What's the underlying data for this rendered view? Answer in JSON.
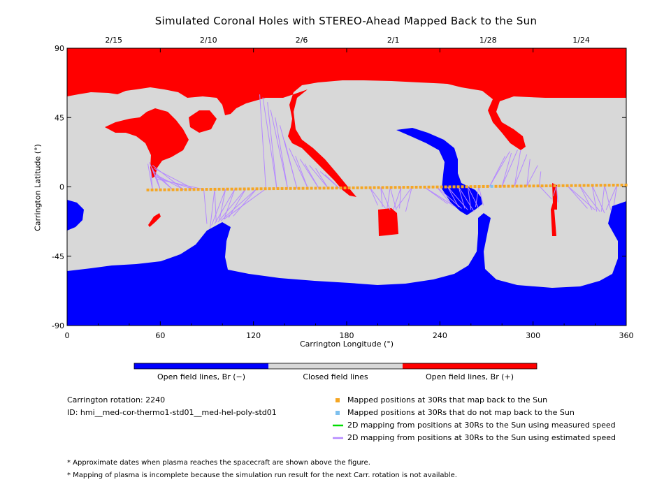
{
  "chart_data": {
    "type": "heatmap",
    "title": "Simulated Coronal Holes with STEREO-Ahead Mapped Back to the Sun",
    "xlabel": "Carrington Longitude (°)",
    "ylabel": "Carrington Latitude (°)",
    "xlim": [
      0,
      360
    ],
    "ylim": [
      -90,
      90
    ],
    "xticks": [
      0,
      60,
      120,
      180,
      240,
      300,
      360
    ],
    "yticks": [
      -90,
      -45,
      0,
      45,
      90
    ],
    "top_axis_dates": [
      {
        "label": "2/15",
        "lon": 30
      },
      {
        "label": "2/10",
        "lon": 91
      },
      {
        "label": "2/6",
        "lon": 151
      },
      {
        "label": "2/1",
        "lon": 210
      },
      {
        "label": "1/28",
        "lon": 271
      },
      {
        "label": "1/24",
        "lon": 331
      }
    ],
    "colors": {
      "open_negative": "#0000ff",
      "closed": "#d8d8d8",
      "open_positive": "#ff0000",
      "mapped_point": "#f5a623",
      "unmapped_point": "#7ec0ee",
      "measured_line": "#00dd00",
      "estimated_line": "#b589ff"
    },
    "colorbar": [
      {
        "label": "Open field lines, Br (−)",
        "color": "#0000ff"
      },
      {
        "label": "Closed field lines",
        "color": "#d8d8d8"
      },
      {
        "label": "Open field lines, Br (+)",
        "color": "#ff0000"
      }
    ],
    "mapped_positions_at_30Rs": {
      "lon_start": 52,
      "lon_end": 360,
      "lat_start": -2.0,
      "lat_end": 1.2,
      "unmapped_lon": [
        274
      ]
    },
    "mapping_lines_estimated_speed": [
      {
        "from_lon": 55,
        "to": [
          [
            52,
            15
          ],
          [
            54,
            10
          ]
        ]
      },
      {
        "from_lon": 60,
        "to": [
          [
            55,
            12
          ],
          [
            57,
            8
          ],
          [
            53,
            16
          ]
        ]
      },
      {
        "from_lon": 68,
        "to": [
          [
            56,
            10
          ],
          [
            58,
            7
          ]
        ]
      },
      {
        "from_lon": 75,
        "to": [
          [
            57,
            8
          ],
          [
            55,
            14
          ]
        ]
      },
      {
        "from_lon": 82,
        "to": [
          [
            58,
            6
          ],
          [
            56,
            12
          ]
        ]
      },
      {
        "from_lon": 88,
        "to": [
          [
            90,
            -24
          ],
          [
            58,
            5
          ]
        ]
      },
      {
        "from_lon": 95,
        "to": [
          [
            92,
            -27
          ],
          [
            96,
            -23
          ]
        ]
      },
      {
        "from_lon": 102,
        "to": [
          [
            93,
            -25
          ],
          [
            98,
            -22
          ]
        ]
      },
      {
        "from_lon": 108,
        "to": [
          [
            95,
            -24
          ],
          [
            101,
            -21
          ]
        ]
      },
      {
        "from_lon": 115,
        "to": [
          [
            97,
            -23
          ],
          [
            104,
            -20
          ]
        ]
      },
      {
        "from_lon": 122,
        "to": [
          [
            99,
            -22
          ],
          [
            107,
            -19
          ]
        ]
      },
      {
        "from_lon": 128,
        "to": [
          [
            101,
            -21
          ],
          [
            124,
            60
          ]
        ]
      },
      {
        "from_lon": 135,
        "to": [
          [
            126,
            58
          ],
          [
            129,
            55
          ]
        ]
      },
      {
        "from_lon": 142,
        "to": [
          [
            131,
            50
          ],
          [
            134,
            45
          ]
        ]
      },
      {
        "from_lon": 148,
        "to": [
          [
            137,
            40
          ],
          [
            140,
            30
          ]
        ]
      },
      {
        "from_lon": 155,
        "to": [
          [
            143,
            25
          ],
          [
            147,
            20
          ]
        ]
      },
      {
        "from_lon": 162,
        "to": [
          [
            150,
            18
          ],
          [
            153,
            15
          ]
        ]
      },
      {
        "from_lon": 168,
        "to": [
          [
            156,
            14
          ],
          [
            160,
            12
          ]
        ]
      },
      {
        "from_lon": 175,
        "to": [
          [
            163,
            10
          ],
          [
            166,
            8
          ]
        ]
      },
      {
        "from_lon": 195,
        "to": [
          [
            200,
            -12
          ],
          [
            205,
            -14
          ]
        ]
      },
      {
        "from_lon": 202,
        "to": [
          [
            203,
            -13
          ],
          [
            208,
            -15
          ]
        ]
      },
      {
        "from_lon": 208,
        "to": [
          [
            206,
            -14
          ],
          [
            212,
            -15
          ]
        ]
      },
      {
        "from_lon": 215,
        "to": [
          [
            210,
            -15
          ],
          [
            214,
            -14
          ]
        ]
      },
      {
        "from_lon": 222,
        "to": [
          [
            212,
            -14
          ],
          [
            218,
            -16
          ]
        ]
      },
      {
        "from_lon": 230,
        "to": [
          [
            245,
            -11
          ],
          [
            250,
            -13
          ]
        ]
      },
      {
        "from_lon": 238,
        "to": [
          [
            248,
            -12
          ],
          [
            254,
            -14
          ]
        ]
      },
      {
        "from_lon": 245,
        "to": [
          [
            252,
            -13
          ],
          [
            258,
            -15
          ]
        ]
      },
      {
        "from_lon": 252,
        "to": [
          [
            256,
            -14
          ],
          [
            262,
            -16
          ]
        ]
      },
      {
        "from_lon": 258,
        "to": [
          [
            260,
            -15
          ],
          [
            265,
            -14
          ]
        ]
      },
      {
        "from_lon": 265,
        "to": [
          [
            263,
            -13
          ],
          [
            268,
            -12
          ]
        ]
      },
      {
        "from_lon": 272,
        "to": [
          [
            282,
            20
          ],
          [
            285,
            23
          ]
        ]
      },
      {
        "from_lon": 280,
        "to": [
          [
            286,
            22
          ],
          [
            290,
            24
          ]
        ]
      },
      {
        "from_lon": 288,
        "to": [
          [
            292,
            24
          ],
          [
            296,
            21
          ]
        ]
      },
      {
        "from_lon": 296,
        "to": [
          [
            298,
            18
          ],
          [
            303,
            14
          ]
        ]
      },
      {
        "from_lon": 304,
        "to": [
          [
            305,
            10
          ],
          [
            312,
            -8
          ]
        ]
      },
      {
        "from_lon": 315,
        "to": [
          [
            316,
            -10
          ],
          [
            313,
            -6
          ]
        ]
      },
      {
        "from_lon": 322,
        "to": [
          [
            335,
            -14
          ],
          [
            340,
            -15
          ]
        ]
      },
      {
        "from_lon": 330,
        "to": [
          [
            338,
            -15
          ],
          [
            343,
            -16
          ]
        ]
      },
      {
        "from_lon": 338,
        "to": [
          [
            341,
            -16
          ],
          [
            346,
            -17
          ]
        ]
      },
      {
        "from_lon": 346,
        "to": [
          [
            344,
            -16
          ],
          [
            350,
            -15
          ]
        ]
      },
      {
        "from_lon": 354,
        "to": [
          [
            347,
            -15
          ],
          [
            352,
            -12
          ]
        ]
      }
    ]
  },
  "legend": {
    "items": [
      {
        "label": "Mapped positions at 30Rs that map back to the Sun",
        "kind": "square",
        "color": "#f5a623"
      },
      {
        "label": "Mapped positions at 30Rs that do not map back to the Sun",
        "kind": "square",
        "color": "#7ec0ee"
      },
      {
        "label": "2D mapping from positions at 30Rs to the Sun using measured speed",
        "kind": "line",
        "color": "#00dd00"
      },
      {
        "label": "2D mapping from positions at 30Rs to the Sun using estimated speed",
        "kind": "line",
        "color": "#b589ff"
      }
    ]
  },
  "info": {
    "rotation": "Carrington rotation: 2240",
    "id": "ID: hmi__med-cor-thermo1-std01__med-hel-poly-std01"
  },
  "notes": [
    "* Approximate dates when plasma reaches the spacecraft are shown above the figure.",
    "* Mapping of plasma is incomplete because the simulation run result for the next Carr. rotation is not available."
  ]
}
